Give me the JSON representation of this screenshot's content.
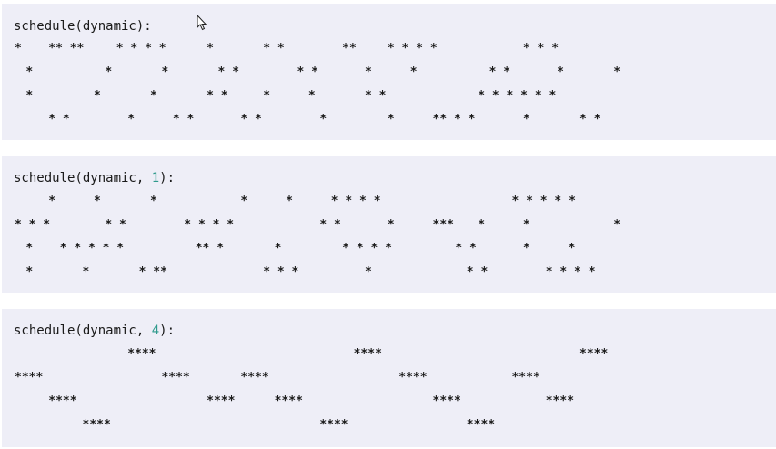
{
  "panels": [
    {
      "id": "dynamic",
      "title": "schedule(dynamic):",
      "title_parts": [
        "schedule(dynamic):"
      ],
      "rows": [
        [
          {
            "col": 0,
            "text": "*"
          },
          {
            "col": 3,
            "text": "** **"
          },
          {
            "col": 9,
            "text": "* * * *"
          },
          {
            "col": 17,
            "text": "*"
          },
          {
            "col": 22,
            "text": "* *"
          },
          {
            "col": 29,
            "text": "**"
          },
          {
            "col": 33,
            "text": "* * * *"
          },
          {
            "col": 45,
            "text": "* * *"
          }
        ],
        [
          {
            "col": 1,
            "text": "*"
          },
          {
            "col": 8,
            "text": "*"
          },
          {
            "col": 13,
            "text": "*"
          },
          {
            "col": 18,
            "text": "* *"
          },
          {
            "col": 25,
            "text": "* *"
          },
          {
            "col": 31,
            "text": "*"
          },
          {
            "col": 35,
            "text": "*"
          },
          {
            "col": 42,
            "text": "* *"
          },
          {
            "col": 48,
            "text": "*"
          },
          {
            "col": 53,
            "text": "*"
          }
        ],
        [
          {
            "col": 1,
            "text": "*"
          },
          {
            "col": 7,
            "text": "*"
          },
          {
            "col": 12,
            "text": "*"
          },
          {
            "col": 17,
            "text": "* *"
          },
          {
            "col": 22,
            "text": "*"
          },
          {
            "col": 26,
            "text": "*"
          },
          {
            "col": 31,
            "text": "* *"
          },
          {
            "col": 41,
            "text": "* * * * * *"
          }
        ],
        [
          {
            "col": 3,
            "text": "* *"
          },
          {
            "col": 10,
            "text": "*"
          },
          {
            "col": 14,
            "text": "* *"
          },
          {
            "col": 20,
            "text": "* *"
          },
          {
            "col": 27,
            "text": "*"
          },
          {
            "col": 33,
            "text": "*"
          },
          {
            "col": 37,
            "text": "** * *"
          },
          {
            "col": 45,
            "text": "*"
          },
          {
            "col": 50,
            "text": "* *"
          }
        ]
      ]
    },
    {
      "id": "dynamic-1",
      "title_prefix": "schedule(dynamic, ",
      "title_number": "1",
      "title_suffix": "):",
      "rows": [
        [
          {
            "col": 3,
            "text": "*"
          },
          {
            "col": 7,
            "text": "*"
          },
          {
            "col": 12,
            "text": "*"
          },
          {
            "col": 20,
            "text": "*"
          },
          {
            "col": 24,
            "text": "*"
          },
          {
            "col": 28,
            "text": "* * * *"
          },
          {
            "col": 44,
            "text": "* * * * *"
          }
        ],
        [
          {
            "col": 0,
            "text": "* * *"
          },
          {
            "col": 8,
            "text": "* *"
          },
          {
            "col": 15,
            "text": "* * * *"
          },
          {
            "col": 27,
            "text": "* *"
          },
          {
            "col": 33,
            "text": "*"
          },
          {
            "col": 37,
            "text": "***"
          },
          {
            "col": 41,
            "text": "*"
          },
          {
            "col": 45,
            "text": "*"
          },
          {
            "col": 53,
            "text": "*"
          }
        ],
        [
          {
            "col": 1,
            "text": "*"
          },
          {
            "col": 4,
            "text": "* * * * *"
          },
          {
            "col": 16,
            "text": "** *"
          },
          {
            "col": 23,
            "text": "*"
          },
          {
            "col": 29,
            "text": "* * * *"
          },
          {
            "col": 39,
            "text": "* *"
          },
          {
            "col": 45,
            "text": "*"
          },
          {
            "col": 49,
            "text": "*"
          }
        ],
        [
          {
            "col": 1,
            "text": "*"
          },
          {
            "col": 6,
            "text": "*"
          },
          {
            "col": 11,
            "text": "* **"
          },
          {
            "col": 22,
            "text": "* * *"
          },
          {
            "col": 31,
            "text": "*"
          },
          {
            "col": 40,
            "text": "* *"
          },
          {
            "col": 47,
            "text": "* * * *"
          }
        ]
      ]
    },
    {
      "id": "dynamic-4",
      "title_prefix": "schedule(dynamic, ",
      "title_number": "4",
      "title_suffix": "):",
      "rows": [
        [
          {
            "col": 10,
            "text": "****"
          },
          {
            "col": 30,
            "text": "****"
          },
          {
            "col": 50,
            "text": "****"
          }
        ],
        [
          {
            "col": 0,
            "text": "****"
          },
          {
            "col": 13,
            "text": "****"
          },
          {
            "col": 20,
            "text": "****"
          },
          {
            "col": 34,
            "text": "****"
          },
          {
            "col": 44,
            "text": "****"
          }
        ],
        [
          {
            "col": 3,
            "text": "****"
          },
          {
            "col": 17,
            "text": "****"
          },
          {
            "col": 23,
            "text": "****"
          },
          {
            "col": 37,
            "text": "****"
          },
          {
            "col": 47,
            "text": "****"
          }
        ],
        [
          {
            "col": 6,
            "text": "****"
          },
          {
            "col": 27,
            "text": "****"
          },
          {
            "col": 40,
            "text": "****"
          }
        ]
      ]
    }
  ],
  "icons": {
    "cursor": "arrow-cursor-icon"
  },
  "colors": {
    "panel_bg": "#eeeef7",
    "text": "#1a1a1a",
    "number": "#2f9a8c"
  }
}
